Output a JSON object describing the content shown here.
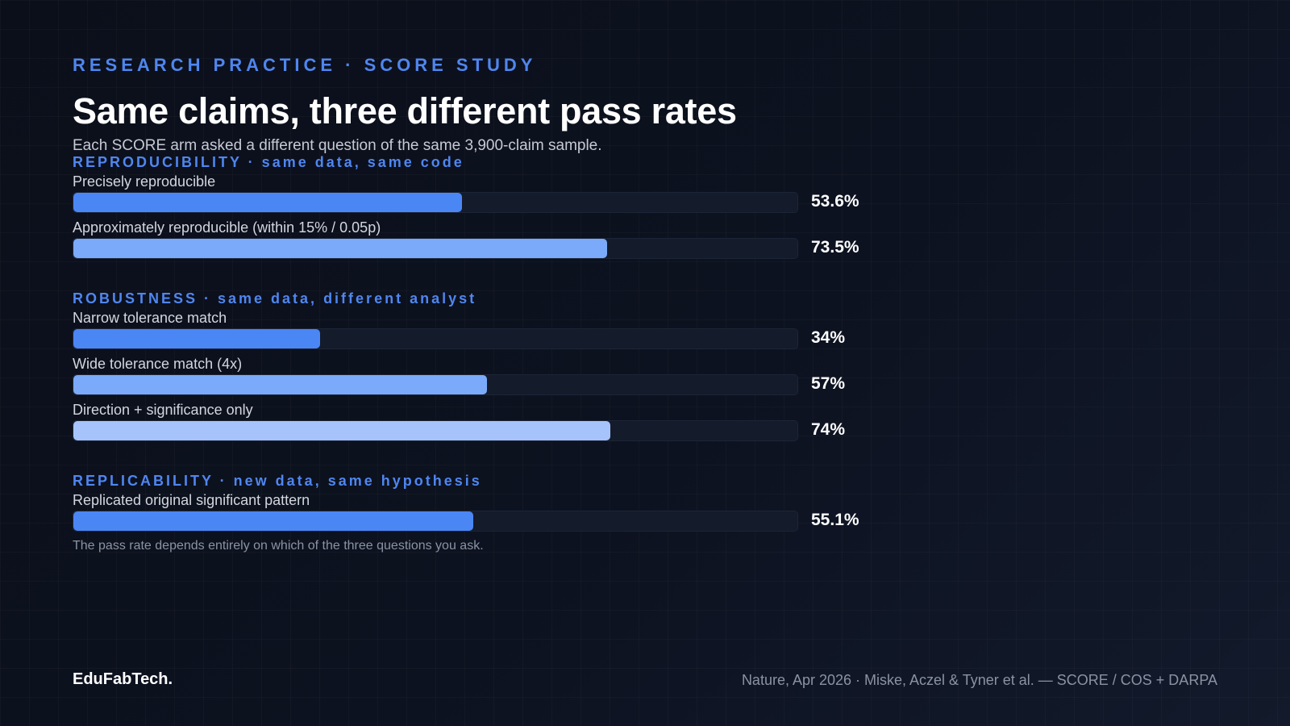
{
  "eyebrow": "RESEARCH PRACTICE · SCORE STUDY",
  "title": "Same claims, three different pass rates",
  "subtitle": "Each SCORE arm asked a different question of the same 3,900-claim sample.",
  "note": "The pass rate depends entirely on which of the three questions you ask.",
  "footer": {
    "brand": "EduFabTech.",
    "source": "Nature, Apr 2026 · Miske, Aczel & Tyner et al. — SCORE / COS + DARPA"
  },
  "colors": {
    "accent": "#4f86f0",
    "bar_primary": "#4b86f5",
    "bar_secondary": "#7aaaf9",
    "bar_tertiary": "#a6c4fb",
    "track": "#141b2a"
  },
  "chart_data": {
    "type": "bar",
    "orientation": "horizontal",
    "xlim": [
      0,
      100
    ],
    "unit": "%",
    "groups": [
      {
        "title": "REPRODUCIBILITY · same data, same code",
        "items": [
          {
            "label": "Precisely reproducible",
            "value": 53.6,
            "display": "53.6%",
            "color": "#4b86f5"
          },
          {
            "label": "Approximately reproducible (within 15% / 0.05p)",
            "value": 73.5,
            "display": "73.5%",
            "color": "#7aaaf9"
          }
        ]
      },
      {
        "title": "ROBUSTNESS · same data, different analyst",
        "items": [
          {
            "label": "Narrow tolerance match",
            "value": 34,
            "display": "34%",
            "color": "#4b86f5"
          },
          {
            "label": "Wide tolerance match (4x)",
            "value": 57,
            "display": "57%",
            "color": "#7aaaf9"
          },
          {
            "label": "Direction + significance only",
            "value": 74,
            "display": "74%",
            "color": "#a6c4fb"
          }
        ]
      },
      {
        "title": "REPLICABILITY · new data, same hypothesis",
        "items": [
          {
            "label": "Replicated original significant pattern",
            "value": 55.1,
            "display": "55.1%",
            "color": "#4b86f5"
          }
        ]
      }
    ]
  }
}
